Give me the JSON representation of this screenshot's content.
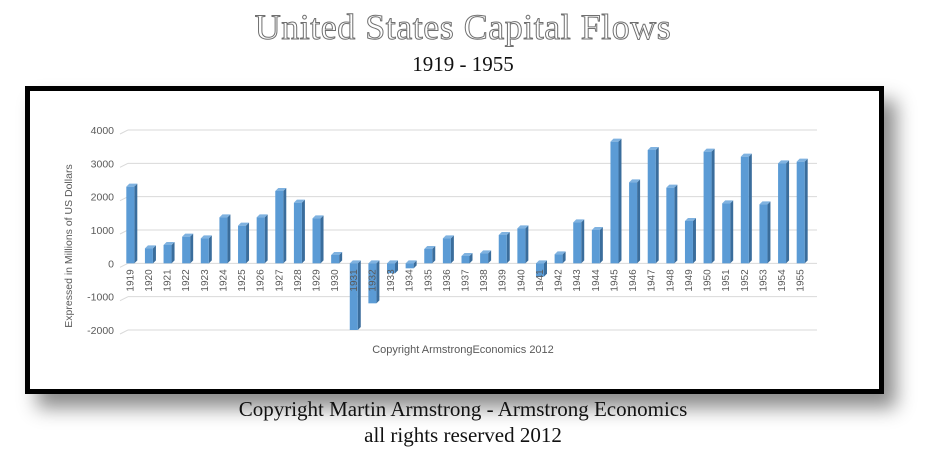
{
  "header": {
    "title": "United States Capital Flows",
    "subtitle": "1919 - 1955"
  },
  "footer": {
    "line1": "Copyright Martin Armstrong - Armstrong Economics",
    "line2": "all rights reserved 2012"
  },
  "colors": {
    "bar_face": "#5b9bd5",
    "bar_side": "#3a6d9c",
    "bar_top": "#7fb2e0",
    "grid": "#d9d9d9",
    "text": "#595959"
  },
  "chart_data": {
    "type": "bar",
    "title": "United States Capital Flows",
    "subtitle": "1919 - 1955",
    "xlabel": "",
    "ylabel": "Expressed in Millions of US Dollars",
    "annotation": "Copyright ArmstrongEconomics 2012",
    "ylim": [
      -2000,
      4000
    ],
    "yticks": [
      4000,
      3000,
      2000,
      1000,
      0,
      -1000,
      -2000
    ],
    "grid": true,
    "legend": "none",
    "categories": [
      "1919",
      "1920",
      "1921",
      "1922",
      "1923",
      "1924",
      "1925",
      "1926",
      "1927",
      "1928",
      "1929",
      "1930",
      "1931",
      "1932",
      "1933",
      "1934",
      "1935",
      "1936",
      "1937",
      "1938",
      "1939",
      "1940",
      "1941",
      "1942",
      "1943",
      "1944",
      "1945",
      "1946",
      "1947",
      "1948",
      "1949",
      "1950",
      "1951",
      "1952",
      "1953",
      "1954",
      "1955"
    ],
    "values": [
      2300,
      450,
      550,
      800,
      750,
      1380,
      1130,
      1380,
      2170,
      1820,
      1350,
      250,
      -2000,
      -1200,
      -300,
      -150,
      430,
      750,
      220,
      300,
      850,
      1050,
      -400,
      270,
      1230,
      1000,
      3650,
      2430,
      3400,
      2270,
      1270,
      3350,
      1800,
      3200,
      1770,
      3000,
      3050
    ]
  }
}
